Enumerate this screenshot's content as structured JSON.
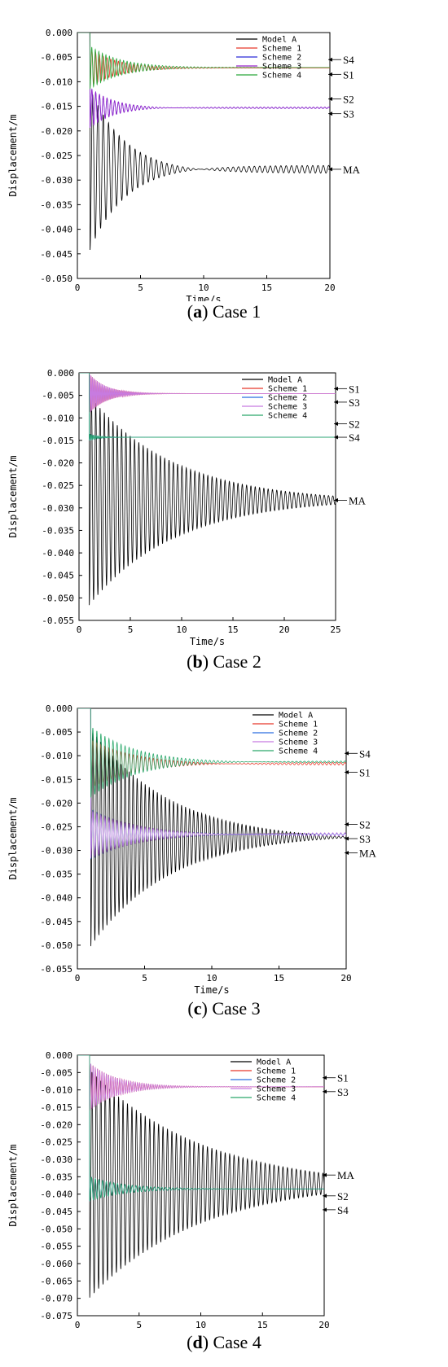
{
  "chart_data": [
    {
      "type": "line",
      "caption_letter": "a",
      "caption_text": ") Case 1",
      "xlabel": "Time/s",
      "ylabel": "Displacement/m",
      "xlim": [
        0,
        20
      ],
      "ylim": [
        -0.05,
        0.0
      ],
      "xticks": [
        "0",
        "5",
        "10",
        "15",
        "20"
      ],
      "yticks": [
        "0.000",
        "-0.005",
        "-0.010",
        "-0.015",
        "-0.020",
        "-0.025",
        "-0.030",
        "-0.035",
        "-0.040",
        "-0.045",
        "-0.050"
      ],
      "legend": [
        "Model A",
        "Scheme 1",
        "Scheme 2",
        "Scheme 3",
        "Scheme 4"
      ],
      "colors": [
        "#000000",
        "#e8382a",
        "#2b2bd8",
        "#9a21c9",
        "#2aa83a"
      ],
      "series": [
        {
          "name": "Model A",
          "onset": 1.0,
          "final": -0.0278,
          "peak": -0.045,
          "period": 0.42,
          "decay": 0.35,
          "floor": 0.0008
        },
        {
          "name": "Scheme 1",
          "onset": 1.0,
          "final": -0.0072,
          "peak": -0.011,
          "period": 0.3,
          "decay": 0.45,
          "floor": 0.0
        },
        {
          "name": "Scheme 2",
          "onset": 1.0,
          "final": -0.0153,
          "peak": -0.0195,
          "period": 0.3,
          "decay": 0.5,
          "floor": 0.00015
        },
        {
          "name": "Scheme 3",
          "onset": 1.0,
          "final": -0.0153,
          "peak": -0.0195,
          "period": 0.3,
          "decay": 0.5,
          "floor": 0.00015
        },
        {
          "name": "Scheme 4",
          "onset": 1.0,
          "final": -0.0071,
          "peak": -0.0115,
          "period": 0.28,
          "decay": 0.42,
          "floor": 0.0
        }
      ],
      "annotations": [
        {
          "text": "S4",
          "y": -0.0055
        },
        {
          "text": "S1",
          "y": -0.0085
        },
        {
          "text": "S2",
          "y": -0.0135
        },
        {
          "text": "S3",
          "y": -0.0165
        },
        {
          "text": "MA",
          "y": -0.0278
        }
      ]
    },
    {
      "type": "line",
      "caption_letter": "b",
      "caption_text": ") Case 2",
      "xlabel": "Time/s",
      "ylabel": "Displacement/m",
      "xlim": [
        0,
        25
      ],
      "ylim": [
        -0.055,
        0.0
      ],
      "xticks": [
        "0",
        "5",
        "10",
        "15",
        "20",
        "25"
      ],
      "yticks": [
        "0.000",
        "-0.005",
        "-0.010",
        "-0.015",
        "-0.020",
        "-0.025",
        "-0.030",
        "-0.035",
        "-0.040",
        "-0.045",
        "-0.050",
        "-0.055"
      ],
      "legend": [
        "Model A",
        "Scheme 1",
        "Scheme 2",
        "Scheme 3",
        "Scheme 4"
      ],
      "colors": [
        "#000000",
        "#e8382a",
        "#2b6de0",
        "#c77be0",
        "#2aa86a"
      ],
      "series": [
        {
          "name": "Model A",
          "onset": 1.0,
          "final": -0.0283,
          "peak": -0.052,
          "period": 0.42,
          "decay": 0.12,
          "floor": 0.0004
        },
        {
          "name": "Scheme 1",
          "onset": 1.0,
          "final": -0.0046,
          "peak": -0.009,
          "period": 0.12,
          "decay": 0.6,
          "floor": 0.0
        },
        {
          "name": "Scheme 2",
          "onset": 1.0,
          "final": -0.0143,
          "peak": -0.015,
          "period": 0.15,
          "decay": 1.0,
          "floor": 0.0
        },
        {
          "name": "Scheme 3",
          "onset": 1.0,
          "final": -0.0046,
          "peak": -0.009,
          "period": 0.12,
          "decay": 0.6,
          "floor": 0.0
        },
        {
          "name": "Scheme 4",
          "onset": 1.0,
          "final": -0.0143,
          "peak": -0.015,
          "period": 0.15,
          "decay": 1.0,
          "floor": 0.0
        }
      ],
      "annotations": [
        {
          "text": "S1",
          "y": -0.0035
        },
        {
          "text": "S3",
          "y": -0.0065
        },
        {
          "text": "S2",
          "y": -0.0113
        },
        {
          "text": "S4",
          "y": -0.0143
        },
        {
          "text": "MA",
          "y": -0.0283
        }
      ]
    },
    {
      "type": "line",
      "caption_letter": "c",
      "caption_text": ") Case 3",
      "xlabel": "Time/s",
      "ylabel": "Displacement/m",
      "xlim": [
        0,
        20
      ],
      "ylim": [
        -0.055,
        0.0
      ],
      "xticks": [
        "0",
        "5",
        "10",
        "15",
        "20"
      ],
      "yticks": [
        "0.000",
        "-0.005",
        "-0.010",
        "-0.015",
        "-0.020",
        "-0.025",
        "-0.030",
        "-0.035",
        "-0.040",
        "-0.045",
        "-0.050",
        "-0.055"
      ],
      "legend": [
        "Model A",
        "Scheme 1",
        "Scheme 2",
        "Scheme 3",
        "Scheme 4"
      ],
      "colors": [
        "#000000",
        "#e8382a",
        "#2b6de0",
        "#c77be0",
        "#2aa86a"
      ],
      "series": [
        {
          "name": "Model A",
          "onset": 1.0,
          "final": -0.0272,
          "peak": -0.051,
          "period": 0.3,
          "decay": 0.17,
          "floor": 0.0008
        },
        {
          "name": "Scheme 1",
          "onset": 1.0,
          "final": -0.0117,
          "peak": -0.017,
          "period": 0.3,
          "decay": 0.28,
          "floor": 0.0003
        },
        {
          "name": "Scheme 2",
          "onset": 1.0,
          "final": -0.0266,
          "peak": -0.032,
          "period": 0.3,
          "decay": 0.28,
          "floor": 0.0002
        },
        {
          "name": "Scheme 3",
          "onset": 1.0,
          "final": -0.0266,
          "peak": -0.032,
          "period": 0.3,
          "decay": 0.25,
          "floor": 0.0004
        },
        {
          "name": "Scheme 4",
          "onset": 1.0,
          "final": -0.0113,
          "peak": -0.019,
          "period": 0.3,
          "decay": 0.3,
          "floor": 0.0002
        }
      ],
      "annotations": [
        {
          "text": "S4",
          "y": -0.0095
        },
        {
          "text": "S1",
          "y": -0.0135
        },
        {
          "text": "S2",
          "y": -0.0245
        },
        {
          "text": "S3",
          "y": -0.0275
        },
        {
          "text": "MA",
          "y": -0.0305
        }
      ]
    },
    {
      "type": "line",
      "caption_letter": "d",
      "caption_text": ") Case 4",
      "xlabel": "Time/s",
      "ylabel": "Displacement/m",
      "xlim": [
        0,
        20
      ],
      "ylim": [
        -0.075,
        0.0
      ],
      "xticks": [
        "0",
        "5",
        "10",
        "15",
        "20"
      ],
      "yticks": [
        "0.000",
        "-0.005",
        "-0.010",
        "-0.015",
        "-0.020",
        "-0.025",
        "-0.030",
        "-0.035",
        "-0.040",
        "-0.045",
        "-0.050",
        "-0.055",
        "-0.060",
        "-0.065",
        "-0.070",
        "-0.075"
      ],
      "legend": [
        "Model A",
        "Scheme 1",
        "Scheme 2",
        "Scheme 3",
        "Scheme 4"
      ],
      "colors": [
        "#000000",
        "#e8382a",
        "#2b6de0",
        "#c77be0",
        "#2aa86a"
      ],
      "series": [
        {
          "name": "Model A",
          "onset": 1.0,
          "final": -0.037,
          "peak": -0.071,
          "period": 0.36,
          "decay": 0.11,
          "floor": 0.0012
        },
        {
          "name": "Scheme 1",
          "onset": 1.0,
          "final": -0.0091,
          "peak": -0.016,
          "period": 0.18,
          "decay": 0.45,
          "floor": 0.0
        },
        {
          "name": "Scheme 2",
          "onset": 1.0,
          "final": -0.0385,
          "peak": -0.042,
          "period": 0.3,
          "decay": 0.35,
          "floor": 0.0
        },
        {
          "name": "Scheme 3",
          "onset": 1.0,
          "final": -0.0091,
          "peak": -0.016,
          "period": 0.18,
          "decay": 0.45,
          "floor": 0.0
        },
        {
          "name": "Scheme 4",
          "onset": 1.0,
          "final": -0.0385,
          "peak": -0.042,
          "period": 0.3,
          "decay": 0.35,
          "floor": 0.0
        }
      ],
      "annotations": [
        {
          "text": "S1",
          "y": -0.0065
        },
        {
          "text": "S3",
          "y": -0.0105
        },
        {
          "text": "MA",
          "y": -0.0345
        },
        {
          "text": "S2",
          "y": -0.0405
        },
        {
          "text": "S4",
          "y": -0.0445
        }
      ]
    }
  ]
}
